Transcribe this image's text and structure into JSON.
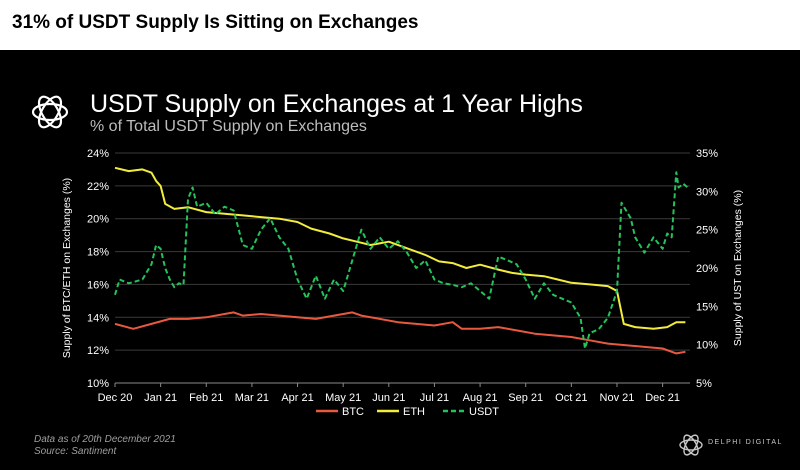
{
  "headline": "31% of USDT Supply Is Sitting on Exchanges",
  "footer": {
    "note": "Data as of 20th December 2021",
    "source": "Source: Santiment",
    "brand": "DELPHI DIGITAL"
  },
  "colors": {
    "background": "#000000",
    "btc": "#e8593f",
    "eth": "#f2ec3c",
    "usdt": "#24c25a",
    "text": "#ffffff",
    "grid": "#3a3a3a"
  },
  "icons": [
    "delphi-logo-icon",
    "delphi-brand-icon"
  ],
  "chart_data": {
    "type": "line",
    "title": "USDT Supply on Exchanges at 1 Year Highs",
    "subtitle": "% of Total USDT Supply on Exchanges",
    "x_tick_labels": [
      "Dec 20",
      "Jan 21",
      "Feb 21",
      "Mar 21",
      "Apr 21",
      "May 21",
      "Jun 21",
      "Jul 21",
      "Aug 21",
      "Sep 21",
      "Oct 21",
      "Nov 21",
      "Dec 21"
    ],
    "x_range": [
      0,
      12.6
    ],
    "y_left": {
      "label": "Supply of BTC/ETH on Exchanges (%)",
      "range": [
        10,
        24
      ],
      "ticks": [
        "10%",
        "12%",
        "14%",
        "16%",
        "18%",
        "20%",
        "22%",
        "24%"
      ]
    },
    "y_right": {
      "label": "Supply of UST on Exchanges (%)",
      "range": [
        5,
        35
      ],
      "ticks": [
        "5%",
        "10%",
        "15%",
        "20%",
        "25%",
        "30%",
        "35%"
      ]
    },
    "grid": "horizontal",
    "legend_position": "bottom-center",
    "series": [
      {
        "name": "BTC",
        "axis": "left",
        "style": "solid",
        "color": "#e8593f",
        "points": [
          [
            0,
            13.6
          ],
          [
            0.4,
            13.3
          ],
          [
            0.8,
            13.6
          ],
          [
            1.2,
            13.9
          ],
          [
            1.6,
            13.9
          ],
          [
            2.0,
            14.0
          ],
          [
            2.4,
            14.2
          ],
          [
            2.6,
            14.3
          ],
          [
            2.8,
            14.1
          ],
          [
            3.2,
            14.2
          ],
          [
            3.6,
            14.1
          ],
          [
            4.0,
            14.0
          ],
          [
            4.4,
            13.9
          ],
          [
            4.8,
            14.1
          ],
          [
            5.0,
            14.2
          ],
          [
            5.2,
            14.3
          ],
          [
            5.4,
            14.1
          ],
          [
            5.8,
            13.9
          ],
          [
            6.2,
            13.7
          ],
          [
            6.6,
            13.6
          ],
          [
            7.0,
            13.5
          ],
          [
            7.4,
            13.7
          ],
          [
            7.6,
            13.3
          ],
          [
            8.0,
            13.3
          ],
          [
            8.4,
            13.4
          ],
          [
            8.8,
            13.2
          ],
          [
            9.2,
            13.0
          ],
          [
            9.6,
            12.9
          ],
          [
            10.0,
            12.8
          ],
          [
            10.4,
            12.6
          ],
          [
            10.8,
            12.4
          ],
          [
            11.2,
            12.3
          ],
          [
            11.6,
            12.2
          ],
          [
            12.0,
            12.1
          ],
          [
            12.3,
            11.8
          ],
          [
            12.5,
            11.9
          ]
        ]
      },
      {
        "name": "ETH",
        "axis": "left",
        "style": "solid",
        "color": "#f2ec3c",
        "points": [
          [
            0,
            23.1
          ],
          [
            0.3,
            22.9
          ],
          [
            0.6,
            23.0
          ],
          [
            0.8,
            22.8
          ],
          [
            0.9,
            22.3
          ],
          [
            1.0,
            22.0
          ],
          [
            1.1,
            20.9
          ],
          [
            1.3,
            20.6
          ],
          [
            1.6,
            20.7
          ],
          [
            2.0,
            20.4
          ],
          [
            2.4,
            20.3
          ],
          [
            2.8,
            20.2
          ],
          [
            3.2,
            20.1
          ],
          [
            3.6,
            20.0
          ],
          [
            4.0,
            19.8
          ],
          [
            4.3,
            19.4
          ],
          [
            4.7,
            19.1
          ],
          [
            5.0,
            18.8
          ],
          [
            5.3,
            18.6
          ],
          [
            5.6,
            18.4
          ],
          [
            6.0,
            18.6
          ],
          [
            6.4,
            18.2
          ],
          [
            6.8,
            17.8
          ],
          [
            7.1,
            17.4
          ],
          [
            7.4,
            17.3
          ],
          [
            7.7,
            17.0
          ],
          [
            8.0,
            17.2
          ],
          [
            8.4,
            16.9
          ],
          [
            8.7,
            16.7
          ],
          [
            9.0,
            16.6
          ],
          [
            9.4,
            16.5
          ],
          [
            9.7,
            16.3
          ],
          [
            10.0,
            16.1
          ],
          [
            10.4,
            16.0
          ],
          [
            10.8,
            15.9
          ],
          [
            11.0,
            15.6
          ],
          [
            11.15,
            13.6
          ],
          [
            11.4,
            13.4
          ],
          [
            11.8,
            13.3
          ],
          [
            12.1,
            13.4
          ],
          [
            12.3,
            13.7
          ],
          [
            12.5,
            13.7
          ]
        ]
      },
      {
        "name": "USDT",
        "axis": "right",
        "style": "dashed",
        "color": "#24c25a",
        "points": [
          [
            0,
            16.5
          ],
          [
            0.1,
            18.5
          ],
          [
            0.3,
            18.0
          ],
          [
            0.6,
            18.5
          ],
          [
            0.8,
            20.5
          ],
          [
            0.9,
            23.0
          ],
          [
            1.0,
            22.5
          ],
          [
            1.1,
            20.0
          ],
          [
            1.2,
            18.5
          ],
          [
            1.3,
            17.5
          ],
          [
            1.4,
            18.0
          ],
          [
            1.5,
            17.8
          ],
          [
            1.6,
            29.0
          ],
          [
            1.7,
            30.5
          ],
          [
            1.8,
            28.0
          ],
          [
            2.0,
            28.5
          ],
          [
            2.2,
            27.0
          ],
          [
            2.4,
            28.0
          ],
          [
            2.6,
            27.5
          ],
          [
            2.8,
            23.0
          ],
          [
            3.0,
            22.5
          ],
          [
            3.2,
            25.0
          ],
          [
            3.4,
            26.5
          ],
          [
            3.6,
            24.0
          ],
          [
            3.8,
            22.5
          ],
          [
            4.0,
            18.5
          ],
          [
            4.2,
            16.0
          ],
          [
            4.4,
            19.0
          ],
          [
            4.6,
            16.0
          ],
          [
            4.8,
            18.5
          ],
          [
            5.0,
            17.0
          ],
          [
            5.2,
            21.0
          ],
          [
            5.4,
            25.0
          ],
          [
            5.6,
            22.5
          ],
          [
            5.8,
            24.0
          ],
          [
            6.0,
            22.5
          ],
          [
            6.2,
            23.5
          ],
          [
            6.4,
            22.0
          ],
          [
            6.6,
            20.0
          ],
          [
            6.8,
            21.0
          ],
          [
            7.0,
            18.5
          ],
          [
            7.2,
            18.0
          ],
          [
            7.4,
            17.8
          ],
          [
            7.6,
            17.5
          ],
          [
            7.8,
            18.0
          ],
          [
            8.0,
            17.0
          ],
          [
            8.2,
            16.0
          ],
          [
            8.4,
            21.5
          ],
          [
            8.6,
            21.0
          ],
          [
            8.8,
            20.5
          ],
          [
            9.0,
            18.5
          ],
          [
            9.2,
            16.0
          ],
          [
            9.4,
            18.0
          ],
          [
            9.6,
            16.5
          ],
          [
            9.8,
            16.0
          ],
          [
            10.0,
            15.5
          ],
          [
            10.2,
            13.5
          ],
          [
            10.3,
            9.5
          ],
          [
            10.4,
            11.5
          ],
          [
            10.6,
            12.0
          ],
          [
            10.8,
            13.5
          ],
          [
            11.0,
            17.0
          ],
          [
            11.1,
            28.5
          ],
          [
            11.3,
            26.5
          ],
          [
            11.4,
            24.0
          ],
          [
            11.6,
            22.0
          ],
          [
            11.8,
            24.0
          ],
          [
            12.0,
            22.5
          ],
          [
            12.1,
            24.5
          ],
          [
            12.2,
            24.0
          ],
          [
            12.3,
            32.5
          ],
          [
            12.35,
            30.5
          ],
          [
            12.45,
            31.0
          ],
          [
            12.55,
            30.5
          ]
        ]
      }
    ]
  }
}
